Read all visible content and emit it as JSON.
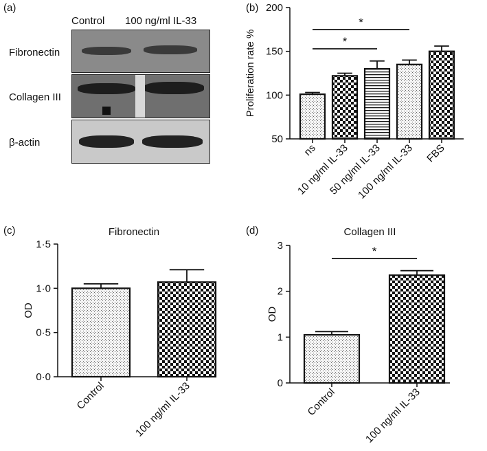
{
  "panel_labels": {
    "a": "(a)",
    "b": "(b)",
    "c": "(c)",
    "d": "(d)"
  },
  "blot": {
    "columns": [
      "Control",
      "100 ng/ml IL-33"
    ],
    "rows": [
      "Fibronectin",
      "Collagen III",
      "β-actin"
    ]
  },
  "colors": {
    "dots_fill": "#f4f4f4",
    "check_dark": "#111111",
    "line": "#111111"
  },
  "chart_data": [
    {
      "panel": "(b)",
      "type": "bar",
      "categories": [
        "ns",
        "10 ng/ml IL-33",
        "50 ng/ml IL-33",
        "100 ng/ml IL-33",
        "FBS"
      ],
      "values": [
        101,
        122,
        130,
        135,
        150
      ],
      "errors": [
        2,
        3,
        9,
        5,
        6
      ],
      "patterns": [
        "dots",
        "check",
        "hlines",
        "dots",
        "check"
      ],
      "ylabel": "Proliferation rate %",
      "ylim": [
        50,
        200
      ],
      "yticks": [
        "50",
        "100",
        "150",
        "200"
      ],
      "significance": [
        {
          "from": 0,
          "to": 2,
          "label": "*"
        },
        {
          "from": 0,
          "to": 3,
          "label": "*"
        }
      ]
    },
    {
      "panel": "(c)",
      "type": "bar",
      "title": "Fibronectin",
      "categories": [
        "Control",
        "100 ng/ml IL-33"
      ],
      "values": [
        1.0,
        1.07
      ],
      "errors": [
        0.05,
        0.14
      ],
      "patterns": [
        "dots",
        "check"
      ],
      "ylabel": "OD",
      "ylim": [
        0,
        1.5
      ],
      "yticks": [
        "0·0",
        "0·5",
        "1·0",
        "1·5"
      ],
      "significance": []
    },
    {
      "panel": "(d)",
      "type": "bar",
      "title": "Collagen III",
      "categories": [
        "Control",
        "100 ng/ml IL-33"
      ],
      "values": [
        1.05,
        2.35
      ],
      "errors": [
        0.07,
        0.1
      ],
      "patterns": [
        "dots",
        "check"
      ],
      "ylabel": "OD",
      "ylim": [
        0,
        3
      ],
      "yticks": [
        "0",
        "1",
        "2",
        "3"
      ],
      "significance": [
        {
          "from": 0,
          "to": 1,
          "label": "*"
        }
      ]
    }
  ]
}
